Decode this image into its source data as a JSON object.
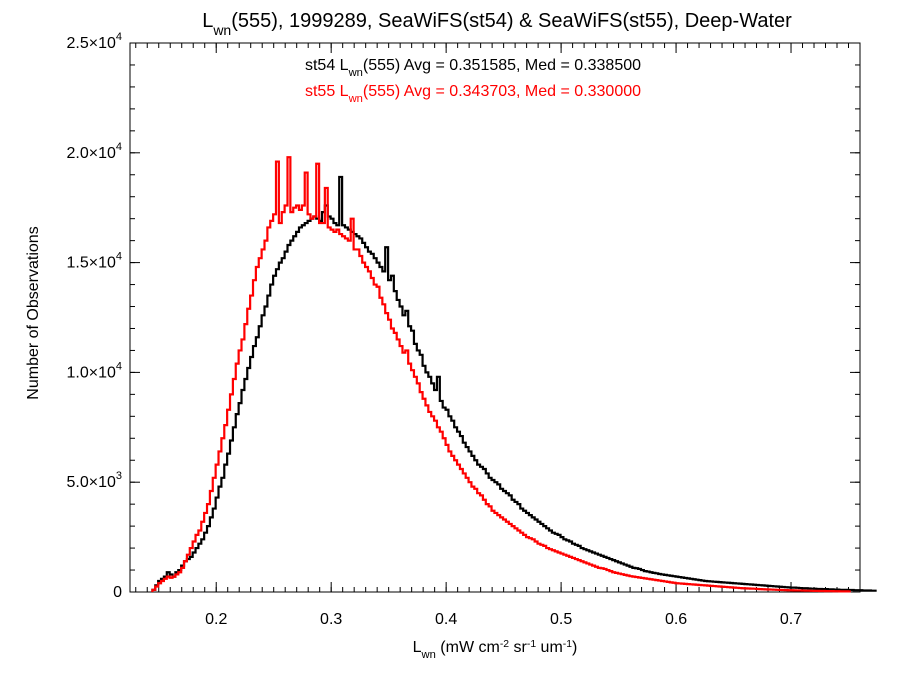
{
  "chart_data": {
    "type": "histogram",
    "title": {
      "parts": [
        {
          "text": "L"
        },
        {
          "text": "wn",
          "sub": true
        },
        {
          "text": "(555), 1999289, SeaWiFS(st54) & SeaWiFS(st55), Deep-Water"
        }
      ]
    },
    "xlabel": {
      "parts": [
        {
          "text": "L"
        },
        {
          "text": "wn",
          "sub": true
        },
        {
          "text": " (mW cm"
        },
        {
          "text": "-2",
          "sup": true
        },
        {
          "text": " sr"
        },
        {
          "text": "-1",
          "sup": true
        },
        {
          "text": " um"
        },
        {
          "text": "-1",
          "sup": true
        },
        {
          "text": ")"
        }
      ]
    },
    "ylabel": "Number of Observations",
    "xlim": [
      0.125,
      0.76
    ],
    "ylim": [
      0,
      25000
    ],
    "x_ticks": [
      {
        "value": 0.2,
        "label": "0.2"
      },
      {
        "value": 0.3,
        "label": "0.3"
      },
      {
        "value": 0.4,
        "label": "0.4"
      },
      {
        "value": 0.5,
        "label": "0.5"
      },
      {
        "value": 0.6,
        "label": "0.6"
      },
      {
        "value": 0.7,
        "label": "0.7"
      }
    ],
    "y_ticks": [
      {
        "value": 0,
        "mantissa": "0",
        "exp": ""
      },
      {
        "value": 5000,
        "mantissa": "5.0×10",
        "exp": "3"
      },
      {
        "value": 10000,
        "mantissa": "1.0×10",
        "exp": "4"
      },
      {
        "value": 15000,
        "mantissa": "1.5×10",
        "exp": "4"
      },
      {
        "value": 20000,
        "mantissa": "2.0×10",
        "exp": "4"
      },
      {
        "value": 25000,
        "mantissa": "2.5×10",
        "exp": "4"
      }
    ],
    "x_minor_step": 0.01,
    "y_minor_step": 1000,
    "bin_start": 0.1445,
    "bin_width": 0.0025,
    "series": [
      {
        "name": "st54",
        "color": "#000000",
        "annotation": {
          "parts": [
            {
              "text": "st54 L"
            },
            {
              "text": "wn",
              "sub": true
            },
            {
              "text": "(555) Avg = 0.351585, Med = 0.338500"
            }
          ]
        },
        "values": [
          100,
          300,
          500,
          600,
          700,
          900,
          800,
          700,
          900,
          1000,
          1200,
          1400,
          1500,
          1600,
          1800,
          2000,
          2200,
          2400,
          2700,
          3000,
          3400,
          3800,
          4300,
          4800,
          5200,
          5800,
          6300,
          6900,
          7500,
          8100,
          8600,
          9200,
          9700,
          10200,
          10700,
          11200,
          11600,
          12100,
          12600,
          13000,
          13500,
          14000,
          14400,
          14700,
          15000,
          15200,
          15500,
          15800,
          16000,
          16200,
          16400,
          16600,
          16700,
          16800,
          16900,
          17000,
          17100,
          17000,
          16900,
          17300,
          17600,
          17100,
          17000,
          16800,
          16700,
          18900,
          16700,
          16600,
          16500,
          16400,
          16300,
          16200,
          16100,
          15900,
          15700,
          15500,
          15400,
          15200,
          15000,
          14800,
          14600,
          15700,
          14200,
          14400,
          13700,
          13300,
          13000,
          12600,
          12800,
          12100,
          11900,
          11300,
          11000,
          10800,
          10300,
          10000,
          9800,
          9500,
          9200,
          9800,
          8700,
          8400,
          8300,
          8000,
          7800,
          7500,
          7300,
          7100,
          6800,
          6600,
          6400,
          6200,
          6000,
          5800,
          5700,
          5600,
          5400,
          5200,
          5100,
          5000,
          4900,
          4700,
          4600,
          4500,
          4400,
          4200,
          4100,
          4000,
          3800,
          3700,
          3600,
          3500,
          3400,
          3300,
          3200,
          3100,
          3000,
          2900,
          2800,
          2700,
          2650,
          2600,
          2500,
          2400,
          2350,
          2300,
          2200,
          2150,
          2100,
          2000,
          1950,
          1900,
          1850,
          1800,
          1750,
          1700,
          1650,
          1600,
          1550,
          1500,
          1450,
          1400,
          1350,
          1300,
          1250,
          1200,
          1150,
          1100,
          1080,
          1050,
          1000,
          950,
          930,
          900,
          870,
          850,
          820,
          800,
          780,
          760,
          740,
          720,
          700,
          680,
          660,
          640,
          620,
          600,
          580,
          560,
          540,
          520,
          500,
          490,
          480,
          470,
          460,
          450,
          440,
          430,
          420,
          410,
          400,
          390,
          380,
          370,
          360,
          350,
          340,
          330,
          320,
          310,
          300,
          290,
          280,
          270,
          260,
          250,
          240,
          230,
          220,
          210,
          200,
          200,
          190,
          180,
          170,
          170,
          160,
          150,
          150,
          140,
          140,
          130,
          130,
          120,
          120,
          110,
          110,
          100,
          100,
          100,
          90,
          90,
          80,
          80,
          80,
          70,
          70,
          70,
          60,
          60
        ]
      },
      {
        "name": "st55",
        "color": "#ff0000",
        "annotation": {
          "parts": [
            {
              "text": "st55 L"
            },
            {
              "text": "wn",
              "sub": true
            },
            {
              "text": "(555) Avg = 0.343703, Med = 0.330000"
            }
          ]
        },
        "values": [
          100,
          250,
          400,
          500,
          600,
          700,
          650,
          700,
          800,
          900,
          1100,
          1400,
          1700,
          2000,
          2300,
          2600,
          2800,
          3200,
          3600,
          4000,
          4600,
          5200,
          5800,
          6400,
          7000,
          7600,
          8300,
          9000,
          9700,
          10400,
          11000,
          11500,
          12200,
          12900,
          13500,
          14200,
          14800,
          15200,
          15600,
          16000,
          16600,
          16900,
          17200,
          19600,
          16800,
          17300,
          17600,
          19800,
          17300,
          17500,
          17600,
          17400,
          17600,
          19100,
          17200,
          17000,
          17100,
          19500,
          16800,
          16800,
          18400,
          16600,
          16500,
          16400,
          16500,
          16300,
          16200,
          16100,
          16000,
          17000,
          15600,
          15600,
          15300,
          15000,
          14800,
          14600,
          14300,
          14000,
          13900,
          13400,
          13100,
          12700,
          12400,
          12000,
          11800,
          11500,
          11200,
          10900,
          11000,
          10400,
          10100,
          9800,
          9500,
          9100,
          8800,
          8500,
          8200,
          8000,
          7800,
          7500,
          7300,
          7000,
          6700,
          6400,
          6200,
          6000,
          5800,
          5600,
          5400,
          5200,
          5000,
          4800,
          4700,
          4500,
          4400,
          4200,
          4000,
          3900,
          3700,
          3600,
          3500,
          3400,
          3300,
          3200,
          3100,
          3000,
          2900,
          2800,
          2700,
          2600,
          2500,
          2450,
          2400,
          2300,
          2200,
          2150,
          2100,
          2000,
          1950,
          1900,
          1850,
          1800,
          1750,
          1700,
          1650,
          1600,
          1550,
          1500,
          1450,
          1400,
          1350,
          1300,
          1250,
          1200,
          1150,
          1100,
          1080,
          1050,
          1000,
          950,
          900,
          870,
          840,
          810,
          780,
          750,
          720,
          700,
          680,
          660,
          640,
          620,
          600,
          580,
          560,
          540,
          520,
          500,
          480,
          460,
          440,
          420,
          400,
          390,
          380,
          370,
          360,
          350,
          340,
          330,
          320,
          310,
          300,
          290,
          280,
          270,
          260,
          250,
          240,
          230,
          220,
          210,
          200,
          190,
          180,
          170,
          165,
          160,
          155,
          150,
          140,
          130,
          125,
          120,
          115,
          110,
          105,
          100,
          95,
          90,
          85,
          80,
          80,
          75,
          70,
          70,
          65,
          60,
          60,
          55,
          50,
          50,
          45,
          45,
          40,
          40,
          40,
          35,
          35,
          30,
          30,
          30,
          25
        ]
      }
    ]
  }
}
